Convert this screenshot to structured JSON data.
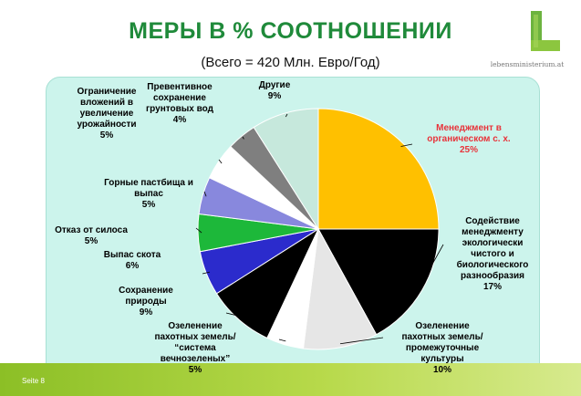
{
  "header": {
    "title": "МЕРЫ В % СООТНОШЕНИИ",
    "subtitle": "(Всего = 420 Млн. Евро/Год)"
  },
  "logo": {
    "icon": "green-l-logo-icon",
    "text": "lebensministerium.at",
    "color": "#6cb33f"
  },
  "footer": {
    "text": "Seite 8"
  },
  "chart_data": {
    "type": "pie",
    "title": "МЕРЫ В % СООТНОШЕНИИ",
    "subtitle": "(Всего = 420 Млн. Евро/Год)",
    "start_angle_deg": 0,
    "direction": "clockwise",
    "slices": [
      {
        "lines": [
          "Менеджмент в",
          "органическом с. х.",
          "25%"
        ],
        "value": 25,
        "color": "#ffc000",
        "label_color": "#e8333a"
      },
      {
        "lines": [
          "Содействие",
          "менеджменту",
          "экологически",
          "чистого и",
          "биологического",
          "разнообразия",
          "17%"
        ],
        "value": 17,
        "color": "#000000",
        "label_color": "#000000"
      },
      {
        "lines": [
          "Озеленение",
          "пахотных земель/",
          "промежуточные",
          "культуры",
          "10%"
        ],
        "value": 10,
        "color": "#e6e6e6",
        "label_color": "#000000"
      },
      {
        "lines": [
          "Озеленение",
          "пахотных земель/",
          "“система",
          "вечнозеленых”",
          "5%"
        ],
        "value": 5,
        "color": "#ffffff",
        "label_color": "#000000"
      },
      {
        "lines": [
          "Сохранение",
          "природы",
          "9%"
        ],
        "value": 9,
        "color": "#000000",
        "label_color": "#000000"
      },
      {
        "lines": [
          "Выпас скота",
          "6%"
        ],
        "value": 6,
        "color": "#2b2bcc",
        "label_color": "#000000"
      },
      {
        "lines": [
          "Отказ от силоса",
          "5%"
        ],
        "value": 5,
        "color": "#1db83a",
        "label_color": "#000000"
      },
      {
        "lines": [
          "Горные пастбища и",
          "выпас",
          "5%"
        ],
        "value": 5,
        "color": "#8888dd",
        "label_color": "#000000"
      },
      {
        "lines": [
          "Ограничение",
          "вложений в",
          "увеличение",
          "урожайности",
          "5%"
        ],
        "value": 5,
        "color": "#ffffff",
        "label_color": "#000000"
      },
      {
        "lines": [
          "Превентивное",
          "сохранение",
          "грунтовых вод",
          "4%"
        ],
        "value": 4,
        "color": "#7f7f7f",
        "label_color": "#000000"
      },
      {
        "lines": [
          "Другие",
          "9%"
        ],
        "value": 9,
        "color": "#c6e8dc",
        "label_color": "#000000"
      }
    ]
  }
}
